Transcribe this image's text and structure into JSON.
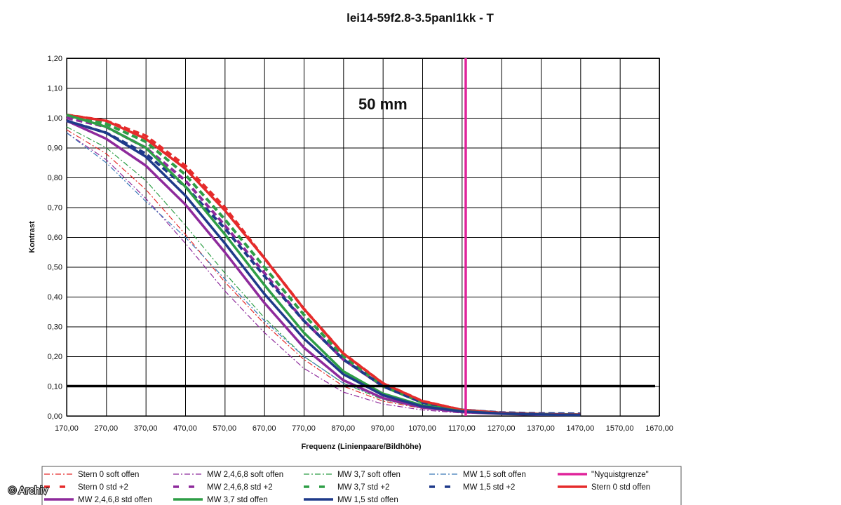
{
  "chart_data": {
    "type": "line",
    "title": "lei14-59f2.8-3.5panl1kk - T",
    "annotation": "50 mm",
    "xlabel": "Frequenz (Linienpaare/Bildhöhe)",
    "ylabel": "Kontrast",
    "xlim": [
      170,
      1670
    ],
    "ylim": [
      0,
      1.2
    ],
    "x_ticks": [
      "170,00",
      "270,00",
      "370,00",
      "470,00",
      "570,00",
      "670,00",
      "770,00",
      "870,00",
      "970,00",
      "1070,00",
      "1170,00",
      "1270,00",
      "1370,00",
      "1470,00",
      "1570,00",
      "1670,00"
    ],
    "y_ticks": [
      "0,00",
      "0,10",
      "0,20",
      "0,30",
      "0,40",
      "0,50",
      "0,60",
      "0,70",
      "0,80",
      "0,90",
      "1,00",
      "1,10",
      "1,20"
    ],
    "grid": true,
    "legend_position": "bottom",
    "reference_lines": [
      {
        "orientation": "horizontal",
        "value": 0.1,
        "color": "#000000"
      },
      {
        "orientation": "vertical",
        "value": 1180,
        "color": "#e0249b",
        "series": "\"Nyquistgrenze\""
      }
    ],
    "series": [
      {
        "name": "Stern 0 soft offen",
        "color": "#e52b2b",
        "style": "dashdot",
        "points": [
          [
            170,
            0.96
          ],
          [
            270,
            0.88
          ],
          [
            370,
            0.76
          ],
          [
            470,
            0.61
          ],
          [
            570,
            0.45
          ],
          [
            670,
            0.31
          ],
          [
            770,
            0.19
          ],
          [
            870,
            0.1
          ],
          [
            970,
            0.05
          ],
          [
            1070,
            0.025
          ],
          [
            1170,
            0.013
          ],
          [
            1270,
            0.007
          ],
          [
            1370,
            0.004
          ],
          [
            1470,
            0.003
          ]
        ]
      },
      {
        "name": "MW 2,4,6,8 soft offen",
        "color": "#8e2a9c",
        "style": "dashdot",
        "points": [
          [
            170,
            0.95
          ],
          [
            270,
            0.86
          ],
          [
            370,
            0.73
          ],
          [
            470,
            0.58
          ],
          [
            570,
            0.42
          ],
          [
            670,
            0.28
          ],
          [
            770,
            0.16
          ],
          [
            870,
            0.08
          ],
          [
            970,
            0.04
          ],
          [
            1070,
            0.02
          ],
          [
            1170,
            0.01
          ],
          [
            1270,
            0.006
          ],
          [
            1370,
            0.004
          ],
          [
            1470,
            0.003
          ]
        ]
      },
      {
        "name": "MW 3,7 soft offen",
        "color": "#2e9e46",
        "style": "dashdot",
        "points": [
          [
            170,
            0.97
          ],
          [
            270,
            0.9
          ],
          [
            370,
            0.79
          ],
          [
            470,
            0.64
          ],
          [
            570,
            0.48
          ],
          [
            670,
            0.33
          ],
          [
            770,
            0.2
          ],
          [
            870,
            0.11
          ],
          [
            970,
            0.055
          ],
          [
            1070,
            0.026
          ],
          [
            1170,
            0.013
          ],
          [
            1270,
            0.007
          ],
          [
            1370,
            0.004
          ],
          [
            1470,
            0.003
          ]
        ]
      },
      {
        "name": "MW 1,5 soft offen",
        "color": "#3a79b8",
        "style": "dashdot",
        "points": [
          [
            170,
            0.95
          ],
          [
            270,
            0.85
          ],
          [
            370,
            0.72
          ],
          [
            470,
            0.6
          ],
          [
            570,
            0.46
          ],
          [
            670,
            0.32
          ],
          [
            770,
            0.2
          ],
          [
            870,
            0.11
          ],
          [
            970,
            0.06
          ],
          [
            1070,
            0.03
          ],
          [
            1170,
            0.015
          ],
          [
            1270,
            0.008
          ],
          [
            1370,
            0.005
          ],
          [
            1470,
            0.004
          ]
        ]
      },
      {
        "name": "\"Nyquistgrenze\"",
        "color": "#e0249b",
        "style": "solid",
        "points": [
          [
            1180,
            0
          ],
          [
            1180,
            1.2
          ]
        ]
      },
      {
        "name": "Stern 0 std +2",
        "color": "#e52b2b",
        "style": "dash",
        "points": [
          [
            170,
            1.01
          ],
          [
            270,
            0.99
          ],
          [
            370,
            0.94
          ],
          [
            470,
            0.84
          ],
          [
            570,
            0.7
          ],
          [
            670,
            0.53
          ],
          [
            770,
            0.36
          ],
          [
            870,
            0.21
          ],
          [
            970,
            0.11
          ],
          [
            1070,
            0.05
          ],
          [
            1170,
            0.02
          ],
          [
            1270,
            0.01
          ],
          [
            1370,
            0.006
          ],
          [
            1470,
            0.004
          ]
        ]
      },
      {
        "name": "MW 2,4,6,8 std +2",
        "color": "#8e2a9c",
        "style": "dash",
        "points": [
          [
            170,
            1.0
          ],
          [
            270,
            0.97
          ],
          [
            370,
            0.9
          ],
          [
            470,
            0.79
          ],
          [
            570,
            0.64
          ],
          [
            670,
            0.48
          ],
          [
            770,
            0.32
          ],
          [
            870,
            0.19
          ],
          [
            970,
            0.1
          ],
          [
            1070,
            0.045
          ],
          [
            1170,
            0.02
          ],
          [
            1270,
            0.01
          ],
          [
            1370,
            0.006
          ],
          [
            1470,
            0.004
          ]
        ]
      },
      {
        "name": "MW 3,7 std +2",
        "color": "#2e9e46",
        "style": "dash",
        "points": [
          [
            170,
            1.01
          ],
          [
            270,
            0.98
          ],
          [
            370,
            0.92
          ],
          [
            470,
            0.81
          ],
          [
            570,
            0.66
          ],
          [
            670,
            0.5
          ],
          [
            770,
            0.34
          ],
          [
            870,
            0.2
          ],
          [
            970,
            0.1
          ],
          [
            1070,
            0.045
          ],
          [
            1170,
            0.02
          ],
          [
            1270,
            0.01
          ],
          [
            1370,
            0.006
          ],
          [
            1470,
            0.004
          ]
        ]
      },
      {
        "name": "MW 1,5 std +2",
        "color": "#1f3a8a",
        "style": "dash",
        "points": [
          [
            170,
            0.99
          ],
          [
            270,
            0.95
          ],
          [
            370,
            0.88
          ],
          [
            470,
            0.77
          ],
          [
            570,
            0.63
          ],
          [
            670,
            0.47
          ],
          [
            770,
            0.32
          ],
          [
            870,
            0.19
          ],
          [
            970,
            0.1
          ],
          [
            1070,
            0.045
          ],
          [
            1170,
            0.02
          ],
          [
            1270,
            0.011
          ],
          [
            1370,
            0.008
          ],
          [
            1470,
            0.007
          ]
        ]
      },
      {
        "name": "Stern 0 std offen",
        "color": "#e52b2b",
        "style": "solid",
        "points": [
          [
            170,
            1.01
          ],
          [
            270,
            0.99
          ],
          [
            370,
            0.93
          ],
          [
            470,
            0.83
          ],
          [
            570,
            0.69
          ],
          [
            670,
            0.53
          ],
          [
            770,
            0.36
          ],
          [
            870,
            0.21
          ],
          [
            970,
            0.11
          ],
          [
            1070,
            0.05
          ],
          [
            1170,
            0.02
          ],
          [
            1270,
            0.01
          ],
          [
            1370,
            0.006
          ],
          [
            1470,
            0.004
          ]
        ]
      },
      {
        "name": "MW 2,4,6,8 std offen",
        "color": "#8e2a9c",
        "style": "solid",
        "points": [
          [
            170,
            0.99
          ],
          [
            270,
            0.93
          ],
          [
            370,
            0.84
          ],
          [
            470,
            0.71
          ],
          [
            570,
            0.55
          ],
          [
            670,
            0.38
          ],
          [
            770,
            0.23
          ],
          [
            870,
            0.12
          ],
          [
            970,
            0.06
          ],
          [
            1070,
            0.028
          ],
          [
            1170,
            0.013
          ],
          [
            1270,
            0.007
          ],
          [
            1370,
            0.004
          ],
          [
            1470,
            0.003
          ]
        ]
      },
      {
        "name": "MW 3,7 std offen",
        "color": "#2e9e46",
        "style": "solid",
        "points": [
          [
            170,
            1.01
          ],
          [
            270,
            0.97
          ],
          [
            370,
            0.9
          ],
          [
            470,
            0.77
          ],
          [
            570,
            0.61
          ],
          [
            670,
            0.44
          ],
          [
            770,
            0.28
          ],
          [
            870,
            0.15
          ],
          [
            970,
            0.075
          ],
          [
            1070,
            0.035
          ],
          [
            1170,
            0.016
          ],
          [
            1270,
            0.008
          ],
          [
            1370,
            0.005
          ],
          [
            1470,
            0.003
          ]
        ]
      },
      {
        "name": "MW 1,5 std offen",
        "color": "#1f3a8a",
        "style": "solid",
        "points": [
          [
            170,
            0.99
          ],
          [
            270,
            0.95
          ],
          [
            370,
            0.87
          ],
          [
            470,
            0.74
          ],
          [
            570,
            0.58
          ],
          [
            670,
            0.41
          ],
          [
            770,
            0.26
          ],
          [
            870,
            0.14
          ],
          [
            970,
            0.07
          ],
          [
            1070,
            0.032
          ],
          [
            1170,
            0.015
          ],
          [
            1270,
            0.008
          ],
          [
            1370,
            0.005
          ],
          [
            1470,
            0.003
          ]
        ]
      }
    ],
    "legend": [
      {
        "label": "Stern 0 soft offen",
        "color": "#e52b2b",
        "style": "dashdot"
      },
      {
        "label": "MW 2,4,6,8 soft offen",
        "color": "#8e2a9c",
        "style": "dashdot"
      },
      {
        "label": "MW 3,7 soft offen",
        "color": "#2e9e46",
        "style": "dashdot"
      },
      {
        "label": "MW 1,5 soft offen",
        "color": "#3a79b8",
        "style": "dashdot"
      },
      {
        "label": "\"Nyquistgrenze\"",
        "color": "#e0249b",
        "style": "solid"
      },
      {
        "label": "Stern 0 std +2",
        "color": "#e52b2b",
        "style": "dash"
      },
      {
        "label": "MW 2,4,6,8 std +2",
        "color": "#8e2a9c",
        "style": "dash"
      },
      {
        "label": "MW 3,7 std +2",
        "color": "#2e9e46",
        "style": "dash"
      },
      {
        "label": "MW 1,5 std +2",
        "color": "#1f3a8a",
        "style": "dash"
      },
      {
        "label": "Stern 0 std offen",
        "color": "#e52b2b",
        "style": "solid"
      },
      {
        "label": "MW 2,4,6,8 std offen",
        "color": "#8e2a9c",
        "style": "solid"
      },
      {
        "label": "MW 3,7 std offen",
        "color": "#2e9e46",
        "style": "solid"
      },
      {
        "label": "MW 1,5 std offen",
        "color": "#1f3a8a",
        "style": "solid"
      }
    ]
  },
  "copyright": "© Archiv"
}
